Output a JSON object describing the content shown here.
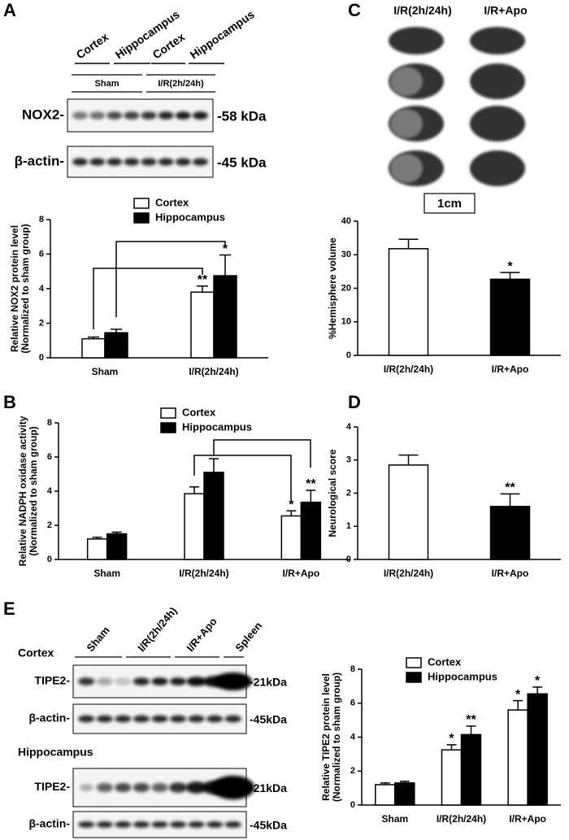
{
  "panels": {
    "labels": [
      "A",
      "B",
      "C",
      "D",
      "E"
    ]
  },
  "blot_a": {
    "groups": [
      "Cortex",
      "Hippocampus",
      "Cortex",
      "Hippocampus"
    ],
    "conditions": [
      "Sham",
      "I/R(2h/24h)"
    ],
    "rows": [
      {
        "label": "NOX2-",
        "size": "-58 kDa"
      },
      {
        "label": "β-actin-",
        "size": "-45 kDa"
      }
    ]
  },
  "slices_c": {
    "groups": [
      "I/R(2h/24h)",
      "I/R+Apo"
    ],
    "scale": "1cm"
  },
  "blot_e": {
    "lanes": [
      "Sham",
      "I/R(2h/24h)",
      "I/R+Apo",
      "Spleen"
    ],
    "sections": [
      {
        "title": "Cortex",
        "rows": [
          {
            "label": "TIPE2-",
            "size": "-21kDa"
          },
          {
            "label": "β-actin-",
            "size": "-45kDa"
          }
        ]
      },
      {
        "title": "Hippocampus",
        "rows": [
          {
            "label": "TIPE2-",
            "size": "-21kDa"
          },
          {
            "label": "β-actin-",
            "size": "-45kDa"
          }
        ]
      }
    ]
  },
  "chart_data": [
    {
      "type": "bar",
      "ylabel": [
        "Relative NOX2 protein level",
        "(Normalized to sham group)"
      ],
      "categories": [
        "Sham",
        "I/R(2h/24h)"
      ],
      "series": [
        {
          "name": "Cortex",
          "color": "#ffffff",
          "values": [
            1.1,
            3.8
          ],
          "errors": [
            0.1,
            0.35
          ],
          "stars": [
            null,
            "**"
          ]
        },
        {
          "name": "Hippocampus",
          "color": "#000000",
          "values": [
            1.45,
            4.75
          ],
          "errors": [
            0.2,
            1.2
          ],
          "stars": [
            null,
            "*"
          ]
        }
      ],
      "ylim": [
        0,
        8
      ],
      "yticks": [
        0,
        2,
        4,
        6,
        8
      ]
    },
    {
      "type": "bar",
      "ylabel": [
        "Relative NADPH oxidase activity",
        "(Normalized to sham group)"
      ],
      "categories": [
        "Sham",
        "I/R(2h/24h)",
        "I/R+Apo"
      ],
      "series": [
        {
          "name": "Cortex",
          "color": "#ffffff",
          "values": [
            1.2,
            3.85,
            2.55
          ],
          "errors": [
            0.1,
            0.4,
            0.3
          ],
          "stars": [
            null,
            null,
            "*"
          ]
        },
        {
          "name": "Hippocampus",
          "color": "#000000",
          "values": [
            1.5,
            5.1,
            3.35
          ],
          "errors": [
            0.1,
            0.8,
            0.7
          ],
          "stars": [
            null,
            null,
            "**"
          ]
        }
      ],
      "ylim": [
        0,
        8
      ],
      "yticks": [
        0,
        2,
        4,
        6,
        8
      ]
    },
    {
      "type": "bar",
      "ylabel": [
        "%Hemisphere volume"
      ],
      "categories": [
        "I/R(2h/24h)",
        "I/R+Apo"
      ],
      "series": [
        {
          "colors": [
            "#ffffff",
            "#000000"
          ],
          "values": [
            31.8,
            22.7
          ],
          "errors": [
            2.8,
            2.0
          ],
          "stars": [
            null,
            "*"
          ]
        }
      ],
      "ylim": [
        0,
        40
      ],
      "yticks": [
        0,
        10,
        20,
        30,
        40
      ]
    },
    {
      "type": "bar",
      "ylabel": [
        "Neurological score"
      ],
      "categories": [
        "I/R(2h/24h)",
        "I/R+Apo"
      ],
      "series": [
        {
          "colors": [
            "#ffffff",
            "#000000"
          ],
          "values": [
            2.85,
            1.6
          ],
          "errors": [
            0.3,
            0.38
          ],
          "stars": [
            null,
            "**"
          ]
        }
      ],
      "ylim": [
        0,
        4
      ],
      "yticks": [
        0,
        1,
        2,
        3,
        4
      ]
    },
    {
      "type": "bar",
      "ylabel": [
        "Relative TIPE2 protein level",
        "(Normalized to sham group)"
      ],
      "categories": [
        "Sham",
        "I/R(2h/24h)",
        "I/R+Apo"
      ],
      "series": [
        {
          "name": "Cortex",
          "color": "#ffffff",
          "values": [
            1.2,
            3.25,
            5.6
          ],
          "errors": [
            0.1,
            0.3,
            0.55
          ],
          "stars": [
            null,
            "*",
            "*"
          ]
        },
        {
          "name": "Hippocampus",
          "color": "#000000",
          "values": [
            1.3,
            4.15,
            6.55
          ],
          "errors": [
            0.1,
            0.5,
            0.4
          ],
          "stars": [
            null,
            "**",
            "*"
          ]
        }
      ],
      "ylim": [
        0,
        8
      ],
      "yticks": [
        0,
        2,
        4,
        6,
        8
      ]
    }
  ]
}
